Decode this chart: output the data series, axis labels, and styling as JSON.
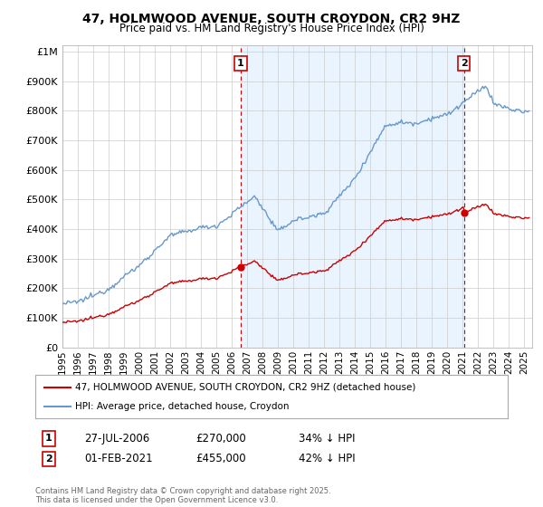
{
  "title": "47, HOLMWOOD AVENUE, SOUTH CROYDON, CR2 9HZ",
  "subtitle": "Price paid vs. HM Land Registry's House Price Index (HPI)",
  "ylim": [
    0,
    1000000
  ],
  "xlim_start": 1995.0,
  "xlim_end": 2025.5,
  "sale1_t": 2006.58,
  "sale1_p": 270000,
  "sale2_t": 2021.08,
  "sale2_p": 455000,
  "annotation1": {
    "label": "1",
    "date": "27-JUL-2006",
    "price": "£270,000",
    "pct": "34% ↓ HPI"
  },
  "annotation2": {
    "label": "2",
    "date": "01-FEB-2021",
    "price": "£455,000",
    "pct": "42% ↓ HPI"
  },
  "legend_line1": "47, HOLMWOOD AVENUE, SOUTH CROYDON, CR2 9HZ (detached house)",
  "legend_line2": "HPI: Average price, detached house, Croydon",
  "footnote": "Contains HM Land Registry data © Crown copyright and database right 2025.\nThis data is licensed under the Open Government Licence v3.0.",
  "line_color_red": "#cc0000",
  "line_color_blue": "#6699cc",
  "fill_color": "#ddeeff",
  "annotation_box_color": "#cc0000",
  "background_color": "#ffffff",
  "grid_color": "#cccccc"
}
